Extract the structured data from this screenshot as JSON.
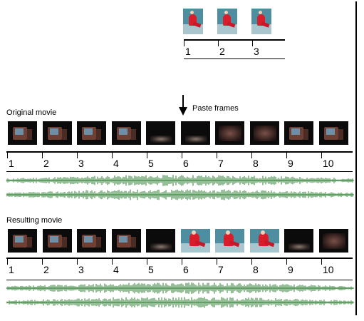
{
  "source_strip": {
    "frames": [
      "skater",
      "skater",
      "skater"
    ],
    "numbers": [
      "1",
      "2",
      "3"
    ]
  },
  "labels": {
    "original": "Original movie",
    "paste": "Paste frames",
    "resulting": "Resulting movie"
  },
  "original_strip": {
    "frames": [
      "tv",
      "tv",
      "tv",
      "tv",
      "dark",
      "dark-glow",
      "blur",
      "blur",
      "tv",
      "tv"
    ],
    "numbers": [
      "1",
      "2",
      "3",
      "4",
      "5",
      "6",
      "7",
      "8",
      "9",
      "10"
    ]
  },
  "resulting_strip": {
    "frames": [
      "tv",
      "tv",
      "tv",
      "tv",
      "dark",
      "skater",
      "skater",
      "skater",
      "dark-glow",
      "blur"
    ],
    "numbers": [
      "1",
      "2",
      "3",
      "4",
      "5",
      "6",
      "7",
      "8",
      "9",
      "10"
    ]
  },
  "colors": {
    "waveform": "#2e7d32",
    "skater_suit": "#d81e2a"
  }
}
